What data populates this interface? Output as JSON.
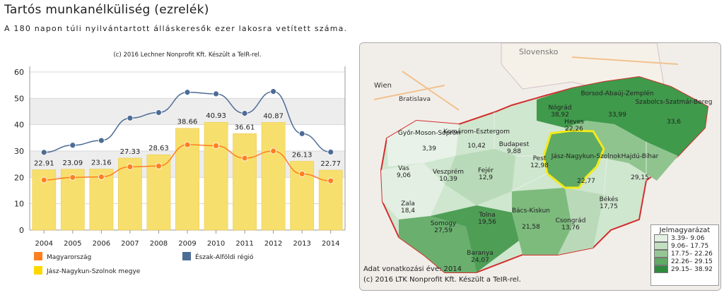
{
  "title": "Tartós munkanélküliség (ezrelék)",
  "subtitle": "A 180 napon túli nyilvántartott álláskeresők ezer lakosra vetített száma.",
  "chart_credit": "(c) 2016 Lechner Nonprofit Kft. Készült a TeIR-rel.",
  "legend": [
    {
      "label": "Magyarország",
      "color": "#ff7f1e"
    },
    {
      "label": "Észak-Alföldi régió",
      "color": "#4c6c96"
    },
    {
      "label": "Jász-Nagykun-Szolnok megye",
      "color": "#ffd800"
    }
  ],
  "chart_data": {
    "type": "bar",
    "categories": [
      "2004",
      "2005",
      "2006",
      "2007",
      "2008",
      "2009",
      "2010",
      "2011",
      "2012",
      "2013",
      "2014"
    ],
    "ylim": [
      0,
      60
    ],
    "yticks": [
      0,
      10,
      20,
      30,
      40,
      50,
      60
    ],
    "series": [
      {
        "name": "Jász-Nagykun-Szolnok megye",
        "kind": "bar",
        "color": "#f7df6e",
        "values": [
          22.91,
          23.09,
          23.16,
          27.33,
          28.63,
          38.66,
          40.93,
          36.61,
          40.87,
          26.13,
          22.77
        ],
        "labels": [
          "22.91",
          "23.09",
          "23.16",
          "27.33",
          "28.63",
          "38.66",
          "40.93",
          "36.61",
          "40.87",
          "26.13",
          "22.77"
        ]
      },
      {
        "name": "Észak-Alföldi régió",
        "kind": "line",
        "color": "#4c6c96",
        "values": [
          29.5,
          32.2,
          34.0,
          42.5,
          44.6,
          52.3,
          51.7,
          44.3,
          52.6,
          36.6,
          29.6
        ]
      },
      {
        "name": "Magyarország",
        "kind": "line",
        "color": "#ff7f1e",
        "values": [
          19.0,
          20.0,
          20.2,
          24.0,
          24.3,
          32.4,
          32.0,
          27.3,
          30.0,
          21.3,
          18.7
        ]
      }
    ]
  },
  "map": {
    "country_label": "Slovensko",
    "cities": [
      "Wien",
      "Bratislava"
    ],
    "counties": [
      {
        "name": "Győr-Moson-Sopron",
        "value": "3,39"
      },
      {
        "name": "Komárom-Esztergom",
        "value": "10,42"
      },
      {
        "name": "Nógrád",
        "value": "38,92"
      },
      {
        "name": "Borsod-Abaúj-Zemplén",
        "value": "33,99"
      },
      {
        "name": "Szabolcs-Szatmár-Bereg",
        "value": "33,6"
      },
      {
        "name": "Heves",
        "value": "22,26"
      },
      {
        "name": "Vas",
        "value": "9,06"
      },
      {
        "name": "Veszprém",
        "value": "10,39"
      },
      {
        "name": "Fejér",
        "value": "12,9"
      },
      {
        "name": "Budapest",
        "value": "9,88"
      },
      {
        "name": "Pest",
        "value": "12,98"
      },
      {
        "name": "Jász-Nagykun-Szolnok",
        "value": "22,77"
      },
      {
        "name": "Hajdú-Bihar",
        "value": "29,15"
      },
      {
        "name": "Zala",
        "value": "18,4"
      },
      {
        "name": "Somogy",
        "value": "27,59"
      },
      {
        "name": "Tolna",
        "value": "19,56"
      },
      {
        "name": "Bács-Kiskun",
        "value": "21,58"
      },
      {
        "name": "Csongrád",
        "value": "13,76"
      },
      {
        "name": "Békés",
        "value": "17,75"
      },
      {
        "name": "Baranya",
        "value": "24,07"
      }
    ],
    "legend_title": "Jelmagyarázat",
    "legend_items": [
      {
        "label": "3.39–  9.06",
        "color": "#e3efe3"
      },
      {
        "label": "9.06– 17.75",
        "color": "#c2dfc2"
      },
      {
        "label": "17.75– 22.26",
        "color": "#95c795"
      },
      {
        "label": "22.26– 29.15",
        "color": "#5faa64"
      },
      {
        "label": "29.15– 38.92",
        "color": "#2f8a3c"
      }
    ],
    "data_year": "Adat vonatkozási éve: 2014",
    "credit": "(c) 2016 LTK Nonprofit Kft. Készült a TeIR-rel."
  }
}
